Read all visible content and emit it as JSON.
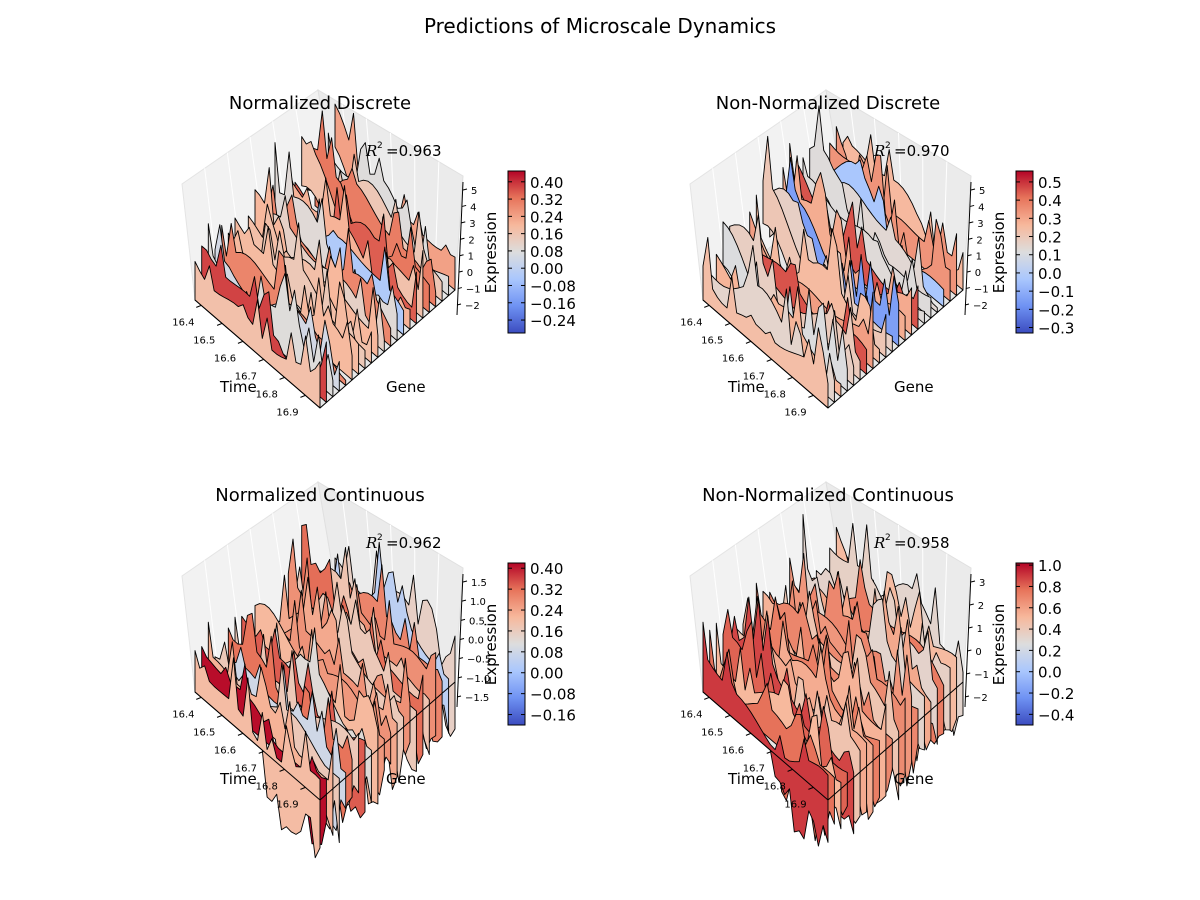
{
  "figure_title": "Predictions of Microscale Dynamics",
  "colormap": {
    "name": "coolwarm",
    "stops": [
      "#3b4cc0",
      "#6f92f3",
      "#aac7fd",
      "#dddddd",
      "#f7b89c",
      "#e7745b",
      "#b40426"
    ]
  },
  "chart_data": [
    {
      "type": "surface3d",
      "title": "Normalized Discrete",
      "annotation": "=0.963",
      "xlabel": "Time",
      "ylabel": "Gene",
      "zlabel": "Expression",
      "time_ticks": [
        "16.4",
        "16.5",
        "16.6",
        "16.7",
        "16.8",
        "16.9"
      ],
      "z_ticks": [
        "−2",
        "−1",
        "0",
        "1",
        "2",
        "3",
        "4",
        "5"
      ],
      "zlim": [
        -2.5,
        5.5
      ],
      "colorbar_ticks": [
        "0.40",
        "0.32",
        "0.24",
        "0.16",
        "0.08",
        "0.00",
        "−0.08",
        "−0.16",
        "−0.24"
      ],
      "colorbar_range": [
        -0.3,
        0.45
      ],
      "r_squared": 0.963
    },
    {
      "type": "surface3d",
      "title": "Non-Normalized Discrete",
      "annotation": "=0.970",
      "xlabel": "Time",
      "ylabel": "Gene",
      "zlabel": "Expression",
      "time_ticks": [
        "16.4",
        "16.5",
        "16.6",
        "16.7",
        "16.8",
        "16.9"
      ],
      "z_ticks": [
        "−2",
        "−1",
        "0",
        "1",
        "2",
        "3",
        "4",
        "5"
      ],
      "zlim": [
        -2.5,
        5.5
      ],
      "colorbar_ticks": [
        "0.5",
        "0.4",
        "0.3",
        "0.2",
        "0.1",
        "0.0",
        "−0.1",
        "−0.2",
        "−0.3"
      ],
      "colorbar_range": [
        -0.33,
        0.56
      ],
      "r_squared": 0.97
    },
    {
      "type": "surface3d",
      "title": "Normalized Continuous",
      "annotation": "=0.962",
      "xlabel": "Time",
      "ylabel": "Gene",
      "zlabel": "Expression",
      "time_ticks": [
        "16.4",
        "16.5",
        "16.6",
        "16.7",
        "16.8",
        "16.9"
      ],
      "z_ticks": [
        "−1.5",
        "−1.0",
        "−0.5",
        "0.0",
        "0.5",
        "1.0",
        "1.5"
      ],
      "zlim": [
        -1.7,
        1.7
      ],
      "colorbar_ticks": [
        "0.40",
        "0.32",
        "0.24",
        "0.16",
        "0.08",
        "0.00",
        "−0.08",
        "−0.16"
      ],
      "colorbar_range": [
        -0.2,
        0.42
      ],
      "r_squared": 0.962
    },
    {
      "type": "surface3d",
      "title": "Non-Normalized Continuous",
      "annotation": "=0.958",
      "xlabel": "Time",
      "ylabel": "Gene",
      "zlabel": "Expression",
      "time_ticks": [
        "16.4",
        "16.5",
        "16.6",
        "16.7",
        "16.8",
        "16.9"
      ],
      "z_ticks": [
        "−2",
        "−1",
        "0",
        "1",
        "2",
        "3"
      ],
      "zlim": [
        -2.5,
        3.3
      ],
      "colorbar_ticks": [
        "1.0",
        "0.8",
        "0.6",
        "0.4",
        "0.2",
        "0.0",
        "−0.2",
        "−0.4"
      ],
      "colorbar_range": [
        -0.5,
        1.02
      ],
      "r_squared": 0.958
    }
  ]
}
